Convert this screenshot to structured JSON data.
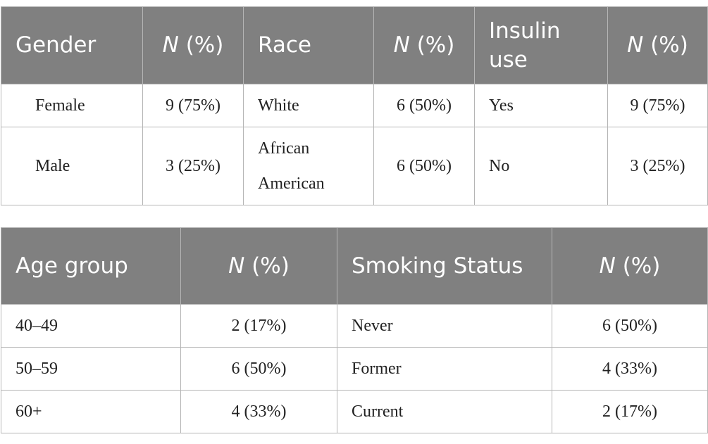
{
  "table1": {
    "headers": {
      "gender": "Gender",
      "n_italic": "N",
      "n_rest": " (%)",
      "race": "Race",
      "insulin": "Insulin use"
    },
    "rows": [
      {
        "gender": "Female",
        "gender_n": "9 (75%)",
        "race": "White",
        "race_n": "6 (50%)",
        "insulin": "Yes",
        "insulin_n": "9 (75%)"
      },
      {
        "gender": "Male",
        "gender_n": "3 (25%)",
        "race": "African American",
        "race_n": "6 (50%)",
        "insulin": "No",
        "insulin_n": "3 (25%)"
      }
    ]
  },
  "table2": {
    "headers": {
      "age": "Age group",
      "n_italic": "N",
      "n_rest": " (%)",
      "smoking": "Smoking Status"
    },
    "rows": [
      {
        "age": "40–49",
        "age_n": "2 (17%)",
        "smoking": "Never",
        "smoking_n": "6 (50%)"
      },
      {
        "age": "50–59",
        "age_n": "6 (50%)",
        "smoking": "Former",
        "smoking_n": "4 (33%)"
      },
      {
        "age": "60+",
        "age_n": "4 (33%)",
        "smoking": "Current",
        "smoking_n": "2 (17%)"
      }
    ]
  }
}
